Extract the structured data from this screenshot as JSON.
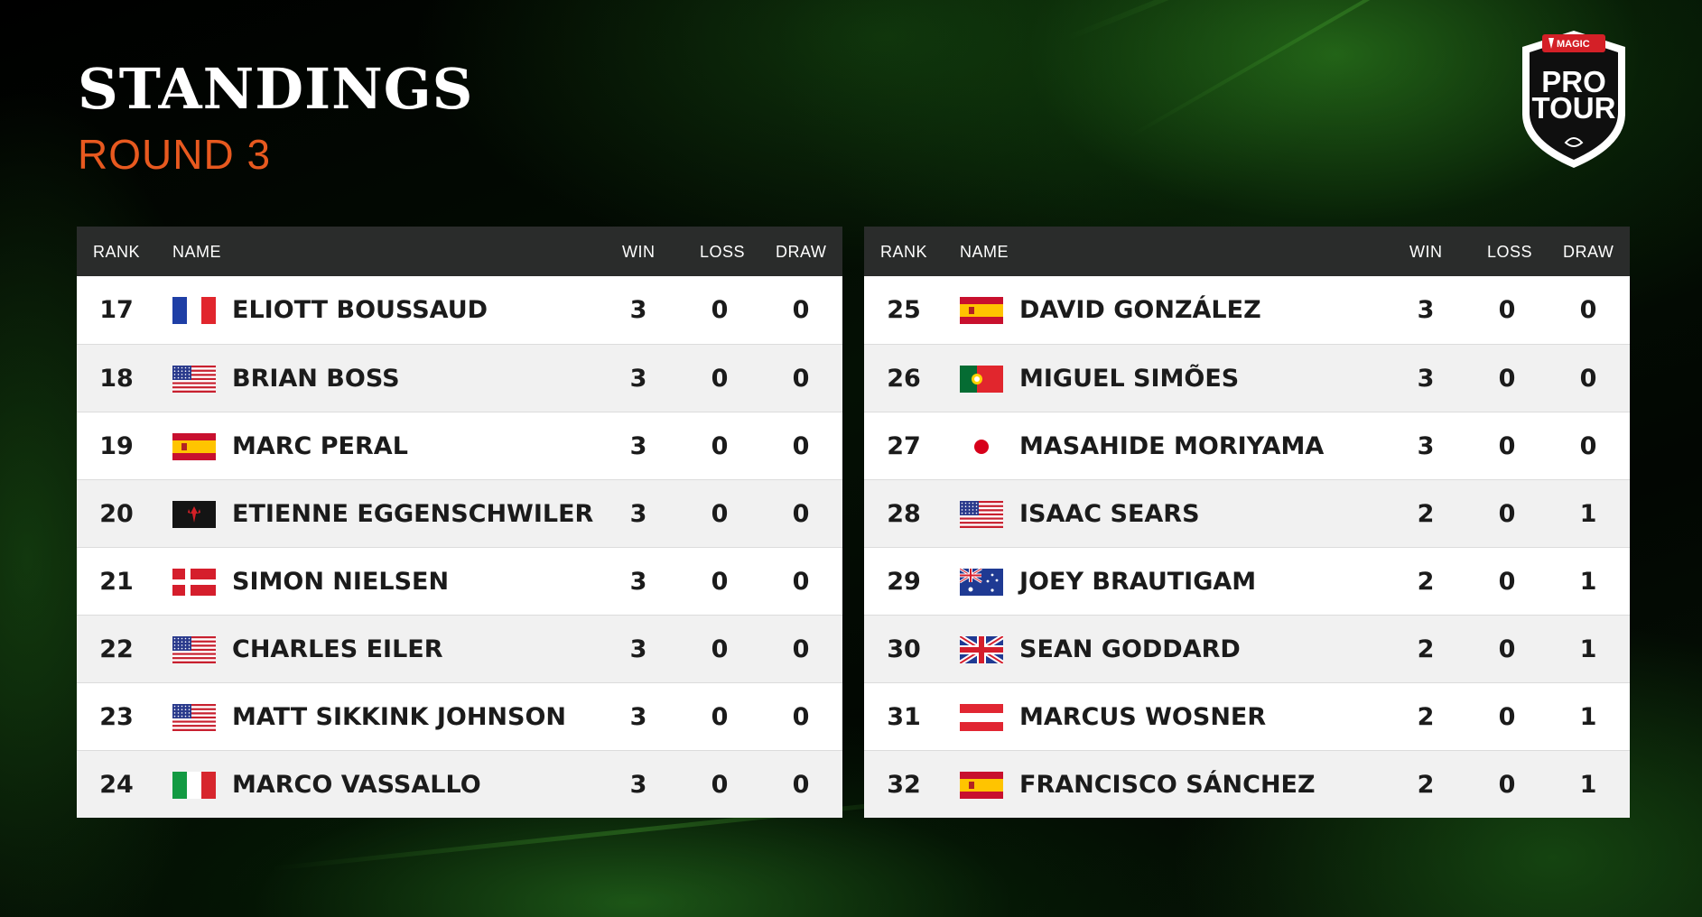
{
  "header": {
    "title": "STANDINGS",
    "subtitle": "ROUND 3"
  },
  "logo": {
    "brand": "MAGIC",
    "line1": "PRO",
    "line2": "TOUR"
  },
  "columns": {
    "rank": "RANK",
    "name": "NAME",
    "win": "WIN",
    "loss": "LOSS",
    "draw": "DRAW"
  },
  "colors": {
    "accent": "#e8591f",
    "header_bg": "#2a2c2b",
    "row_odd": "#ffffff",
    "row_even": "#f1f1f1"
  },
  "left_table": [
    {
      "rank": "17",
      "flag": "france-flag-icon",
      "name": "ELIOTT BOUSSAUD",
      "win": "3",
      "loss": "0",
      "draw": "0"
    },
    {
      "rank": "18",
      "flag": "usa-flag-icon",
      "name": "BRIAN BOSS",
      "win": "3",
      "loss": "0",
      "draw": "0"
    },
    {
      "rank": "19",
      "flag": "spain-flag-icon",
      "name": "MARC PERAL",
      "win": "3",
      "loss": "0",
      "draw": "0"
    },
    {
      "rank": "20",
      "flag": "magic-symbol-flag-icon",
      "name": "ETIENNE EGGENSCHWILER",
      "win": "3",
      "loss": "0",
      "draw": "0"
    },
    {
      "rank": "21",
      "flag": "denmark-flag-icon",
      "name": "SIMON NIELSEN",
      "win": "3",
      "loss": "0",
      "draw": "0"
    },
    {
      "rank": "22",
      "flag": "usa-flag-icon",
      "name": "CHARLES EILER",
      "win": "3",
      "loss": "0",
      "draw": "0"
    },
    {
      "rank": "23",
      "flag": "usa-flag-icon",
      "name": "MATT SIKKINK JOHNSON",
      "win": "3",
      "loss": "0",
      "draw": "0"
    },
    {
      "rank": "24",
      "flag": "italy-flag-icon",
      "name": "MARCO VASSALLO",
      "win": "3",
      "loss": "0",
      "draw": "0"
    }
  ],
  "right_table": [
    {
      "rank": "25",
      "flag": "spain-flag-icon",
      "name": "DAVID GONZÁLEZ",
      "win": "3",
      "loss": "0",
      "draw": "0"
    },
    {
      "rank": "26",
      "flag": "portugal-flag-icon",
      "name": "MIGUEL SIMÕES",
      "win": "3",
      "loss": "0",
      "draw": "0"
    },
    {
      "rank": "27",
      "flag": "japan-flag-icon",
      "name": "MASAHIDE MORIYAMA",
      "win": "3",
      "loss": "0",
      "draw": "0"
    },
    {
      "rank": "28",
      "flag": "usa-flag-icon",
      "name": "ISAAC SEARS",
      "win": "2",
      "loss": "0",
      "draw": "1"
    },
    {
      "rank": "29",
      "flag": "australia-flag-icon",
      "name": "JOEY BRAUTIGAM",
      "win": "2",
      "loss": "0",
      "draw": "1"
    },
    {
      "rank": "30",
      "flag": "uk-flag-icon",
      "name": "SEAN GODDARD",
      "win": "2",
      "loss": "0",
      "draw": "1"
    },
    {
      "rank": "31",
      "flag": "austria-flag-icon",
      "name": "MARCUS WOSNER",
      "win": "2",
      "loss": "0",
      "draw": "1"
    },
    {
      "rank": "32",
      "flag": "spain-flag-icon",
      "name": "FRANCISCO SÁNCHEZ",
      "win": "2",
      "loss": "0",
      "draw": "1"
    }
  ]
}
